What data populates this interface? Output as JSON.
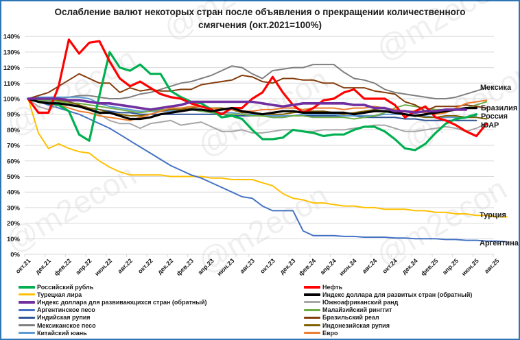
{
  "title": "Ослабление валют некоторых стран после объявления о прекращении количественного смягчения  (окт.2021=100%)",
  "title_line1": "Ослабление валют некоторых стран после объявления о прекращении количественного",
  "title_line2": "смягчения  (окт.2021=100%)",
  "watermark": "@m2econ",
  "chart_data": {
    "type": "line",
    "title": "Ослабление валют некоторых стран после объявления о прекращении количественного смягчения (окт.2021=100%)",
    "xlabel": "",
    "ylabel": "",
    "ylim": [
      0,
      140
    ],
    "yticks": [
      "0%",
      "10%",
      "20%",
      "30%",
      "40%",
      "50%",
      "60%",
      "70%",
      "80%",
      "90%",
      "100%",
      "110%",
      "120%",
      "130%",
      "140%"
    ],
    "xticks": [
      "окт.21",
      "дек.21",
      "фев.22",
      "апр.22",
      "июн.22",
      "авг.22",
      "окт.22",
      "дек.22",
      "фев.23",
      "апр.23",
      "июн.23",
      "авг.23",
      "окт.23",
      "дек.23",
      "фев.24",
      "апр.24",
      "июн.24",
      "авг.24",
      "окт.24",
      "дек.24",
      "фев.25",
      "апр.25",
      "июн.25",
      "авг.25"
    ],
    "grid": true,
    "legend_position": "bottom",
    "x_start": "окт.21",
    "x_step": "1 month",
    "end_labels": [
      {
        "text": "Мексика",
        "value": 107
      },
      {
        "text": "Бразилия",
        "value": 94
      },
      {
        "text": "Россия",
        "value": 90
      },
      {
        "text": "ЮАР",
        "value": 84
      },
      {
        "text": "Турция",
        "value": 24
      },
      {
        "text": "Аргентина",
        "value": 8
      }
    ],
    "series": [
      {
        "name": "Российский рубль",
        "color": "#00b050",
        "width": 3.2,
        "values": [
          100,
          98,
          97,
          96,
          92,
          77,
          73,
          102,
          130,
          120,
          118,
          122,
          116,
          116,
          105,
          101,
          98,
          97,
          93,
          88,
          89,
          87,
          80,
          74,
          74,
          75,
          80,
          79,
          78,
          76,
          77,
          77,
          80,
          82,
          82,
          79,
          74,
          68,
          67,
          71,
          78,
          84,
          87,
          88,
          90
        ]
      },
      {
        "name": "Турецкая лира",
        "color": "#ffc000",
        "width": 2,
        "values": [
          100,
          78,
          68,
          71,
          68,
          66,
          65,
          60,
          56,
          53,
          51,
          51,
          51,
          51,
          50,
          50,
          50,
          50,
          49,
          49,
          48,
          48,
          48,
          46,
          44,
          39,
          36,
          35,
          33,
          33,
          32,
          31,
          31,
          30,
          30,
          29,
          29,
          29,
          28,
          28,
          27,
          27,
          26,
          26,
          25,
          25,
          24,
          24
        ]
      },
      {
        "name": "Индекс доллара для развивающихся стран (обратный)",
        "color": "#7030a0",
        "width": 3.6,
        "values": [
          100,
          100,
          100,
          100,
          99,
          99,
          98,
          97,
          97,
          96,
          95,
          94,
          93,
          94,
          95,
          96,
          98,
          98,
          98,
          98,
          98,
          98,
          98,
          97,
          96,
          95,
          96,
          97,
          97,
          97,
          97,
          97,
          96,
          96,
          94,
          94,
          92,
          92,
          91,
          92,
          92,
          93,
          93,
          93
        ]
      },
      {
        "name": "Аргентинское песо",
        "color": "#4472c4",
        "width": 2,
        "values": [
          100,
          98,
          96,
          94,
          92,
          90,
          87,
          84,
          81,
          77,
          73,
          69,
          65,
          61,
          57,
          54,
          51,
          49,
          46,
          43,
          40,
          37,
          36,
          31,
          28,
          28,
          28,
          15,
          12,
          12,
          12,
          11.5,
          11.5,
          11,
          11,
          11,
          10.5,
          10.5,
          10,
          10,
          10,
          9.5,
          9.5,
          9,
          9,
          8.5,
          8.5,
          8
        ]
      },
      {
        "name": "Индийская рупия",
        "color": "#2f5597",
        "width": 2,
        "values": [
          100,
          99,
          98,
          97,
          96,
          95,
          94,
          93,
          92,
          91,
          91,
          90,
          90,
          90,
          90,
          90,
          90,
          90,
          90,
          90,
          89,
          89,
          89,
          89,
          88,
          88,
          89,
          89,
          89,
          89,
          89,
          89,
          89,
          88,
          88,
          88,
          88,
          87,
          87,
          86,
          86,
          86,
          86,
          86,
          86
        ]
      },
      {
        "name": "Мексиканское песо",
        "color": "#7f7f7f",
        "width": 2,
        "values": [
          100,
          99,
          98,
          100,
          101,
          102,
          102,
          101,
          100,
          100,
          101,
          103,
          104,
          106,
          108,
          110,
          111,
          113,
          115,
          118,
          121,
          120,
          116,
          113,
          118,
          119,
          120,
          120,
          122,
          122,
          122,
          117,
          113,
          112,
          110,
          106,
          104,
          103,
          102,
          101,
          100,
          100,
          101,
          103,
          105,
          107
        ]
      },
      {
        "name": "Китайский юань",
        "color": "#5b9bd5",
        "width": 2,
        "values": [
          100,
          101,
          101,
          101,
          101,
          101,
          100,
          97,
          95,
          94,
          93,
          92,
          92,
          92,
          92,
          93,
          93,
          92,
          92,
          91,
          91,
          90,
          90,
          89,
          89,
          89,
          89,
          90,
          90,
          90,
          90,
          89,
          89,
          89,
          89,
          90,
          90,
          90,
          89,
          89,
          88,
          88,
          88,
          88,
          89
        ]
      },
      {
        "name": "Нефть",
        "color": "#ff0000",
        "width": 3.2,
        "values": [
          100,
          91,
          91,
          108,
          138,
          129,
          136,
          137,
          124,
          113,
          108,
          111,
          107,
          103,
          101,
          100,
          97,
          95,
          93,
          90,
          94,
          94,
          100,
          104,
          114,
          104,
          96,
          91,
          94,
          99,
          100,
          104,
          106,
          100,
          100,
          100,
          96,
          88,
          92,
          95,
          88,
          86,
          83,
          79,
          76,
          84
        ]
      },
      {
        "name": "Индекс доллара для развитых стран (обратный)",
        "color": "#000000",
        "width": 3.2,
        "values": [
          100,
          98,
          97,
          97,
          96,
          95,
          93,
          91,
          91,
          89,
          87,
          87,
          88,
          90,
          91,
          92,
          93,
          93,
          92,
          93,
          94,
          92,
          91,
          90,
          91,
          92,
          92,
          91,
          91,
          91,
          91,
          91,
          90,
          91,
          92,
          92,
          91,
          90,
          89,
          90,
          91,
          92,
          93,
          94,
          94
        ]
      },
      {
        "name": "Южноафриканский ранд",
        "color": "#a6a6a6",
        "width": 2,
        "values": [
          100,
          95,
          93,
          96,
          97,
          96,
          93,
          90,
          86,
          84,
          84,
          81,
          84,
          85,
          86,
          83,
          84,
          85,
          82,
          79,
          79,
          80,
          78,
          78,
          79,
          80,
          80,
          79,
          79,
          80,
          80,
          80,
          81,
          82,
          83,
          83,
          81,
          79,
          79,
          80,
          81,
          82,
          81,
          79,
          81,
          84
        ]
      },
      {
        "name": "Малайзийский ринггит",
        "color": "#70ad47",
        "width": 2,
        "values": [
          100,
          99,
          99,
          98,
          97,
          97,
          96,
          95,
          94,
          93,
          92,
          91,
          92,
          93,
          93,
          94,
          93,
          92,
          91,
          90,
          90,
          90,
          89,
          89,
          88,
          88,
          89,
          89,
          88,
          88,
          88,
          88,
          87,
          88,
          89,
          91,
          94,
          96,
          95,
          94,
          93,
          93,
          93,
          94,
          96,
          98
        ]
      },
      {
        "name": "Бразильский реал",
        "color": "#843c0c",
        "width": 2,
        "values": [
          100,
          102,
          104,
          108,
          112,
          116,
          113,
          110,
          110,
          104,
          107,
          105,
          106,
          105,
          105,
          106,
          106,
          109,
          110,
          111,
          112,
          115,
          114,
          111,
          110,
          113,
          113,
          112,
          112,
          110,
          110,
          107,
          107,
          107,
          105,
          104,
          103,
          98,
          96,
          92,
          95,
          95,
          95,
          96,
          95,
          94
        ]
      },
      {
        "name": "Индонезийская рупия",
        "color": "#806000",
        "width": 2,
        "values": [
          100,
          100,
          100,
          99,
          98,
          96,
          94,
          93,
          91,
          90,
          89,
          89,
          90,
          92,
          93,
          93,
          94,
          95,
          94,
          94,
          93,
          91,
          91,
          90,
          90,
          90,
          91,
          92,
          92,
          92,
          91,
          90,
          91,
          92,
          93,
          92,
          91,
          90,
          89,
          88,
          88,
          89,
          89,
          88,
          88,
          87
        ]
      },
      {
        "name": "Евро",
        "color": "#ed7d31",
        "width": 2,
        "values": [
          100,
          98,
          97,
          96,
          94,
          92,
          91,
          89,
          88,
          87,
          86,
          88,
          90,
          92,
          94,
          94,
          95,
          95,
          94,
          93,
          93,
          92,
          92,
          93,
          93,
          94,
          94,
          93,
          94,
          94,
          94,
          93,
          94,
          94,
          95,
          94,
          93,
          92,
          92,
          91,
          90,
          91,
          94,
          97,
          98,
          99
        ]
      }
    ]
  },
  "legend": {
    "left": [
      {
        "label": "Российский рубль",
        "color": "#00b050",
        "thick": true
      },
      {
        "label": "Турецкая лира",
        "color": "#ffc000",
        "thick": false
      },
      {
        "label": "Индекс доллара для развивающихся стран (обратный)",
        "color": "#7030a0",
        "thick": true
      },
      {
        "label": "Аргентинское песо",
        "color": "#4472c4",
        "thick": false
      },
      {
        "label": "Индийская рупия",
        "color": "#2f5597",
        "thick": false
      },
      {
        "label": "Мексиканское песо",
        "color": "#7f7f7f",
        "thick": false
      },
      {
        "label": "Китайский юань",
        "color": "#5b9bd5",
        "thick": false
      }
    ],
    "right": [
      {
        "label": "Нефть",
        "color": "#ff0000",
        "thick": true
      },
      {
        "label": "Индекс доллара для развитых стран (обратный)",
        "color": "#000000",
        "thick": true
      },
      {
        "label": "Южноафриканский ранд",
        "color": "#a6a6a6",
        "thick": false
      },
      {
        "label": "Малайзийский ринггит",
        "color": "#70ad47",
        "thick": false
      },
      {
        "label": "Бразильский реал",
        "color": "#843c0c",
        "thick": false
      },
      {
        "label": "Индонезийская рупия",
        "color": "#806000",
        "thick": false
      },
      {
        "label": "Евро",
        "color": "#ed7d31",
        "thick": false
      }
    ]
  },
  "legend_display": {
    "right_3": "Южноафриканский ранд"
  },
  "colors": {
    "border": "#2e75b6",
    "grid": "#d9d9d9"
  }
}
